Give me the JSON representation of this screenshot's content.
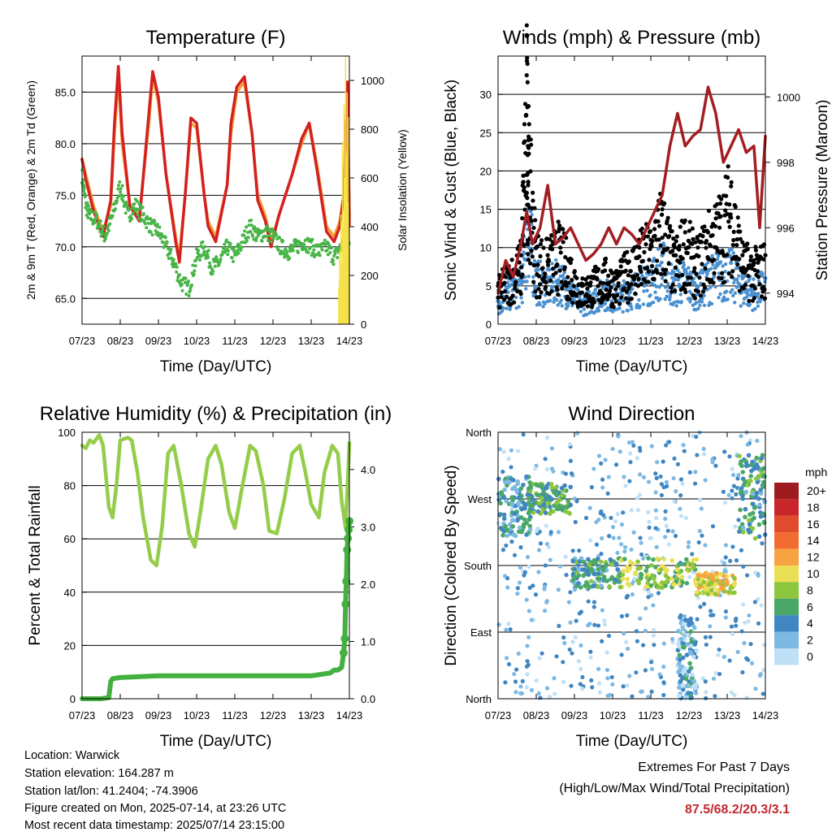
{
  "x_ticks": [
    "07/23",
    "08/23",
    "09/23",
    "10/23",
    "11/23",
    "12/23",
    "13/23",
    "14/23"
  ],
  "x_label": "Time (Day/UTC)",
  "chart_data": [
    {
      "id": "temperature",
      "type": "line",
      "title": "Temperature (F)",
      "ylabel": "2m & 9m T (Red, Orange) & 2m Td (Green)",
      "y2label": "Solar Insolation (Yellow)",
      "ylim": [
        62.5,
        88.5
      ],
      "y_ticks": [
        "65.0",
        "70.0",
        "75.0",
        "80.0",
        "85.0"
      ],
      "y_tick_values": [
        65,
        70,
        75,
        80,
        85
      ],
      "y2lim": [
        0,
        1100
      ],
      "y2_ticks": [
        "0",
        "200",
        "400",
        "600",
        "800",
        "1000"
      ],
      "y2_tick_values": [
        0,
        200,
        400,
        600,
        800,
        1000
      ],
      "x_range_days": [
        0,
        7
      ],
      "grid": "horizontal",
      "series": [
        {
          "color": "#f4a23a",
          "x": [
            0,
            0.1,
            0.3,
            0.5,
            0.55,
            0.75,
            0.85,
            0.95,
            1.05,
            1.25,
            1.5,
            1.75,
            1.85,
            2.0,
            2.2,
            2.45,
            2.55,
            2.7,
            2.85,
            3.0,
            3.2,
            3.3,
            3.5,
            3.8,
            3.9,
            4.05,
            4.25,
            4.45,
            4.6,
            4.8,
            4.95,
            5.15,
            5.5,
            5.75,
            5.95,
            6.15,
            6.4,
            6.6,
            6.75,
            6.85,
            6.9,
            6.95,
            7.0
          ],
          "values": [
            78.5,
            77,
            74,
            72,
            71.5,
            74,
            81,
            86.5,
            80,
            74,
            73,
            82,
            86.5,
            84,
            77,
            71,
            69,
            75,
            82,
            81.5,
            75,
            72.5,
            71,
            76,
            81,
            85,
            86,
            81,
            75,
            73,
            70.5,
            73,
            77,
            80,
            82,
            78,
            72,
            71,
            72.5,
            75,
            80,
            85,
            73
          ]
        },
        {
          "color": "#d42020",
          "x": [
            0,
            0.1,
            0.3,
            0.5,
            0.55,
            0.75,
            0.85,
            0.95,
            1.05,
            1.25,
            1.5,
            1.75,
            1.85,
            2.0,
            2.2,
            2.45,
            2.55,
            2.7,
            2.85,
            3.0,
            3.2,
            3.3,
            3.5,
            3.8,
            3.9,
            4.05,
            4.25,
            4.45,
            4.6,
            4.8,
            4.95,
            5.15,
            5.5,
            5.75,
            5.95,
            6.15,
            6.4,
            6.6,
            6.75,
            6.85,
            6.9,
            6.95,
            7.0
          ],
          "values": [
            78.5,
            76.5,
            73.5,
            71.5,
            71,
            74.5,
            82,
            87.5,
            81,
            74,
            72.5,
            83,
            87,
            84.5,
            77,
            70.5,
            68.5,
            75,
            82.5,
            82,
            75,
            72,
            70.5,
            76,
            82,
            85.5,
            86.5,
            81,
            74.5,
            72.5,
            70,
            73,
            77,
            80.5,
            82,
            77.5,
            71.5,
            70.5,
            72,
            75,
            81,
            86,
            72
          ]
        },
        {
          "color": "#47b547",
          "x": [
            0,
            0.1,
            0.2,
            0.4,
            0.6,
            0.8,
            1.0,
            1.2,
            1.4,
            1.6,
            1.8,
            2.0,
            2.2,
            2.4,
            2.6,
            2.8,
            3.0,
            3.2,
            3.4,
            3.6,
            3.8,
            4.0,
            4.2,
            4.4,
            4.6,
            4.8,
            5.0,
            5.2,
            5.4,
            5.6,
            5.8,
            6.0,
            6.2,
            6.4,
            6.6,
            6.8,
            6.9,
            7.0
          ],
          "values": [
            77,
            74,
            73,
            72.5,
            71,
            73,
            76,
            73,
            74,
            73,
            72,
            71.5,
            70,
            68.5,
            66.5,
            66,
            69,
            70,
            68,
            68.5,
            70,
            69,
            70.5,
            72,
            71,
            71.5,
            71,
            70,
            69.5,
            70,
            70.5,
            70,
            69.5,
            70,
            69,
            70,
            71,
            71
          ]
        },
        {
          "color": "#f5e24a",
          "x": [
            6.72,
            6.74,
            6.76,
            6.78,
            6.8,
            6.82,
            6.84,
            6.86,
            6.88,
            6.9,
            6.92,
            6.94,
            6.96,
            6.98,
            7.0
          ],
          "values": [
            150,
            300,
            180,
            450,
            250,
            750,
            400,
            900,
            600,
            1100,
            700,
            950,
            500,
            850,
            300
          ],
          "axis": "y2"
        }
      ]
    },
    {
      "id": "winds",
      "type": "line",
      "title": "Winds (mph) & Pressure (mb)",
      "ylabel": "Sonic Wind & Gust (Blue, Black)",
      "y2label": "Station Pressure (Maroon)",
      "ylim": [
        0,
        35
      ],
      "y_ticks": [
        "0",
        "5",
        "10",
        "15",
        "20",
        "25",
        "30"
      ],
      "y_tick_values": [
        0,
        5,
        10,
        15,
        20,
        25,
        30
      ],
      "y2lim": [
        993.05,
        1001.25
      ],
      "y2_ticks": [
        "994",
        "996",
        "998",
        "1000"
      ],
      "y2_tick_values": [
        994,
        996,
        998,
        1000
      ],
      "x_range_days": [
        0,
        7
      ],
      "grid": "horizontal",
      "series": [
        {
          "color": "#4a90d0",
          "x": [
            0,
            0.3,
            0.6,
            0.8,
            1.0,
            1.3,
            1.6,
            1.9,
            2.2,
            2.5,
            2.8,
            3.1,
            3.4,
            3.7,
            4.0,
            4.3,
            4.6,
            4.9,
            5.2,
            5.5,
            5.8,
            6.1,
            6.4,
            6.7,
            7.0
          ],
          "values": [
            3,
            5,
            6,
            15,
            7,
            6,
            7,
            5,
            3,
            4,
            5,
            4,
            5,
            6,
            7,
            9,
            6,
            7,
            5,
            7,
            8,
            8,
            6,
            5,
            6
          ]
        },
        {
          "color": "#000000",
          "x": [
            0,
            0.3,
            0.6,
            0.75,
            0.8,
            1.0,
            1.3,
            1.6,
            1.9,
            2.2,
            2.5,
            2.8,
            3.1,
            3.4,
            3.7,
            4.0,
            4.3,
            4.6,
            4.9,
            5.2,
            5.5,
            5.8,
            6.1,
            6.4,
            6.7,
            7.0
          ],
          "values": [
            5,
            7,
            9,
            32.5,
            23,
            10,
            9,
            11,
            8,
            5,
            6,
            7,
            6,
            8,
            10,
            11,
            15,
            9,
            12,
            9,
            12,
            14,
            18,
            9,
            8,
            9
          ]
        },
        {
          "color": "#a31e22",
          "x": [
            0,
            0.2,
            0.4,
            0.6,
            0.75,
            0.9,
            1.1,
            1.3,
            1.5,
            1.7,
            1.9,
            2.1,
            2.3,
            2.5,
            2.7,
            2.9,
            3.1,
            3.3,
            3.5,
            3.7,
            3.9,
            4.1,
            4.3,
            4.5,
            4.7,
            4.9,
            5.1,
            5.3,
            5.5,
            5.7,
            5.9,
            6.1,
            6.3,
            6.5,
            6.7,
            6.85,
            7.0
          ],
          "values": [
            994,
            995,
            994.5,
            995.5,
            996.5,
            995.5,
            996,
            997.3,
            995.5,
            995.7,
            996,
            995.5,
            995,
            995.2,
            995.5,
            996,
            995.5,
            996,
            995.8,
            995.5,
            996,
            996.5,
            997,
            998.5,
            999.5,
            998.5,
            998.8,
            999,
            1000.3,
            999.5,
            998,
            998.5,
            999,
            998.3,
            998.5,
            996,
            998.8
          ],
          "axis": "y2"
        }
      ]
    },
    {
      "id": "humidity",
      "type": "line",
      "title": "Relative Humidity (%) & Precipitation (in)",
      "ylabel": "Percent & Total Rainfall",
      "ylim": [
        0,
        100
      ],
      "y_ticks": [
        "0",
        "20",
        "40",
        "60",
        "80",
        "100"
      ],
      "y_tick_values": [
        0,
        20,
        40,
        60,
        80,
        100
      ],
      "y2lim": [
        0,
        4.65
      ],
      "y2_ticks": [
        "0.0",
        "1.0",
        "2.0",
        "3.0",
        "4.0"
      ],
      "y2_tick_values": [
        0,
        1,
        2,
        3,
        4
      ],
      "x_range_days": [
        0,
        7
      ],
      "grid": "horizontal",
      "series": [
        {
          "color": "#93cd4a",
          "x": [
            0,
            0.1,
            0.2,
            0.3,
            0.45,
            0.55,
            0.7,
            0.8,
            0.9,
            1.0,
            1.2,
            1.3,
            1.45,
            1.6,
            1.8,
            1.95,
            2.1,
            2.25,
            2.4,
            2.6,
            2.8,
            2.95,
            3.1,
            3.3,
            3.5,
            3.65,
            3.85,
            4.0,
            4.2,
            4.4,
            4.55,
            4.75,
            4.9,
            5.1,
            5.3,
            5.5,
            5.7,
            5.85,
            6.0,
            6.2,
            6.35,
            6.55,
            6.7,
            6.8,
            6.9,
            6.95,
            7.0
          ],
          "values": [
            95,
            94,
            97,
            96,
            99,
            95,
            72,
            68,
            80,
            97,
            98,
            97,
            85,
            68,
            52,
            50,
            65,
            92,
            95,
            80,
            62,
            57,
            70,
            90,
            95,
            88,
            70,
            64,
            80,
            95,
            93,
            80,
            63,
            62,
            75,
            92,
            95,
            85,
            73,
            68,
            85,
            95,
            92,
            74,
            64,
            80,
            96
          ]
        },
        {
          "color": "#43b03f",
          "x": [
            0,
            0.5,
            0.7,
            0.75,
            0.8,
            1.0,
            2.0,
            3.0,
            4.0,
            5.0,
            6.0,
            6.5,
            6.6,
            6.7,
            6.8,
            6.85,
            6.88,
            6.9,
            6.92,
            6.94,
            6.96,
            6.98,
            7.0
          ],
          "values": [
            0,
            0,
            0.02,
            0.3,
            0.35,
            0.37,
            0.4,
            0.4,
            0.4,
            0.4,
            0.4,
            0.45,
            0.5,
            0.5,
            0.55,
            0.8,
            1.05,
            1.65,
            2.05,
            2.6,
            2.8,
            2.95,
            3.1
          ],
          "axis": "y2"
        }
      ]
    },
    {
      "id": "winddir",
      "type": "scatter",
      "title": "Wind Direction",
      "ylabel": "Direction (Colored By Speed)",
      "ylim": [
        0,
        360
      ],
      "y_ticks": [
        "North",
        "East",
        "South",
        "West",
        "North"
      ],
      "y_tick_values": [
        0,
        90,
        180,
        270,
        360
      ],
      "x_range_days": [
        0,
        7
      ],
      "grid": "horizontal",
      "clusters": [
        {
          "x": [
            0,
            0.9
          ],
          "y": [
            220,
            300
          ],
          "speed": 4
        },
        {
          "x": [
            0.8,
            1.9
          ],
          "y": [
            250,
            290
          ],
          "speed": 6
        },
        {
          "x": [
            1.9,
            3.2
          ],
          "y": [
            150,
            190
          ],
          "speed": 5
        },
        {
          "x": [
            3.2,
            5.2
          ],
          "y": [
            150,
            190
          ],
          "speed": 8
        },
        {
          "x": [
            5.2,
            6.2
          ],
          "y": [
            140,
            170
          ],
          "speed": 10
        },
        {
          "x": [
            6.3,
            7.0
          ],
          "y": [
            210,
            330
          ],
          "speed": 5
        },
        {
          "x": [
            4.7,
            5.2
          ],
          "y": [
            0,
            110
          ],
          "speed": 3
        }
      ],
      "legend_title": "mph",
      "legend_labels": [
        "20+",
        "18",
        "16",
        "14",
        "12",
        "10",
        "8",
        "6",
        "4",
        "2",
        "0"
      ],
      "legend_colors": [
        "#9e1c20",
        "#c8262a",
        "#e04b2d",
        "#f26b30",
        "#f8a341",
        "#ebdf55",
        "#8cc63f",
        "#4aa866",
        "#3f86c2",
        "#7cb9e3",
        "#bfe0f6"
      ]
    }
  ],
  "footer": {
    "location": "Location: Warwick",
    "elevation": "Station elevation: 164.287 m",
    "latlon": "Station lat/lon: 41.2404; -74.3906",
    "created": "Figure created on Mon, 2025-07-14, at 23:26 UTC",
    "timestamp": "Most recent data timestamp: 2025/07/14 23:15:00",
    "extremes_title": "Extremes For Past 7 Days",
    "extremes_sub": "(High/Low/Max Wind/Total Precipitation)",
    "extremes_values": "87.5/68.2/20.3/3.1"
  }
}
